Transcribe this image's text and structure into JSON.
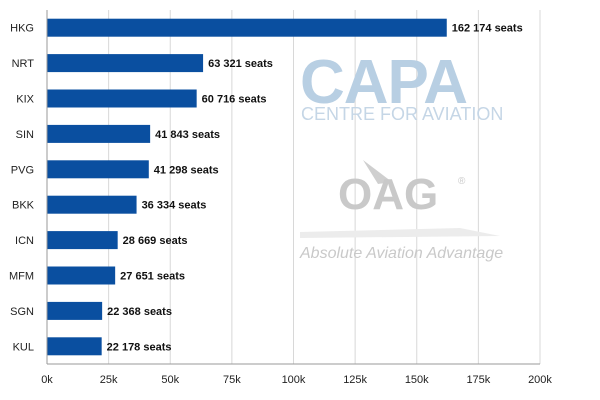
{
  "chart_data": {
    "type": "bar",
    "orientation": "horizontal",
    "categories": [
      "HKG",
      "NRT",
      "KIX",
      "SIN",
      "PVG",
      "BKK",
      "ICN",
      "MFM",
      "SGN",
      "KUL"
    ],
    "values": [
      162174,
      63321,
      60716,
      41843,
      41298,
      36334,
      28669,
      27651,
      22368,
      22178
    ],
    "data_labels": [
      "162 174 seats",
      "63 321 seats",
      "60 716 seats",
      "41 843 seats",
      "41 298 seats",
      "36 334 seats",
      "28 669 seats",
      "27 651 seats",
      "22 368 seats",
      "22 178 seats"
    ],
    "xlim": [
      0,
      200000
    ],
    "xticks": [
      0,
      25000,
      50000,
      75000,
      100000,
      125000,
      150000,
      175000,
      200000
    ],
    "xtick_labels": [
      "0k",
      "25k",
      "50k",
      "75k",
      "100k",
      "125k",
      "150k",
      "175k",
      "200k"
    ],
    "grid": true,
    "bar_color": "#0a4fa0",
    "title": "",
    "xlabel": "",
    "ylabel": ""
  },
  "watermark": {
    "capa_logo": "CAPA",
    "capa_subtitle": "CENTRE FOR AVIATION",
    "oag_logo": "OAG",
    "oag_registered": "®",
    "oag_tagline": "Absolute Aviation Advantage"
  }
}
